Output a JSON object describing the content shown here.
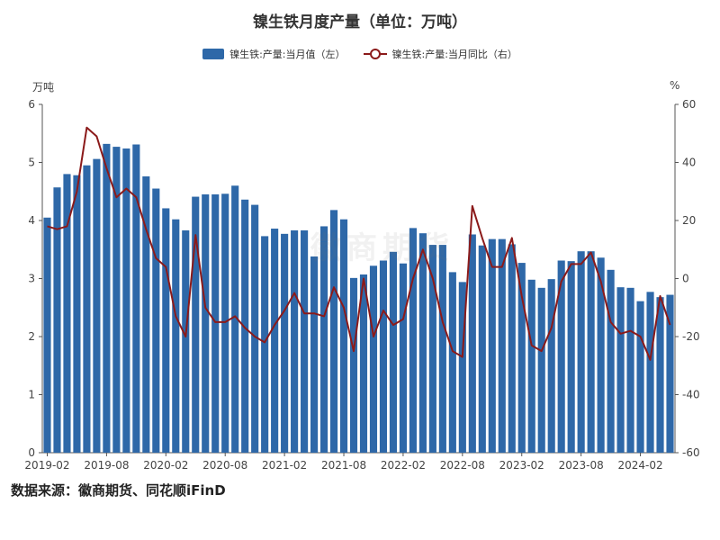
{
  "title": "镍生铁月度产量（单位：万吨）",
  "source": "数据来源：徽商期货、同花顺iFinD",
  "watermark": "徽商期货",
  "left_unit": "万吨",
  "right_unit": "%",
  "colors": {
    "bar": "#2e68a8",
    "line": "#8b1a1a",
    "axis": "#555555"
  },
  "chart_data": {
    "type": "bar",
    "categories": [
      "2019-02",
      "2019-03",
      "2019-04",
      "2019-05",
      "2019-06",
      "2019-07",
      "2019-08",
      "2019-09",
      "2019-10",
      "2019-11",
      "2019-12",
      "2020-01",
      "2020-02",
      "2020-03",
      "2020-04",
      "2020-05",
      "2020-06",
      "2020-07",
      "2020-08",
      "2020-09",
      "2020-10",
      "2020-11",
      "2020-12",
      "2021-01",
      "2021-02",
      "2021-03",
      "2021-04",
      "2021-05",
      "2021-06",
      "2021-07",
      "2021-08",
      "2021-09",
      "2021-10",
      "2021-11",
      "2021-12",
      "2022-01",
      "2022-02",
      "2022-03",
      "2022-04",
      "2022-05",
      "2022-06",
      "2022-07",
      "2022-08",
      "2022-09",
      "2022-10",
      "2022-11",
      "2022-12",
      "2023-01",
      "2023-02",
      "2023-03",
      "2023-04",
      "2023-05",
      "2023-06",
      "2023-07",
      "2023-08",
      "2023-09",
      "2023-10",
      "2023-11",
      "2023-12",
      "2024-01",
      "2024-02",
      "2024-03",
      "2024-04",
      "2024-05"
    ],
    "x_tick_labels": [
      "2019-02",
      "2019-08",
      "2020-02",
      "2020-08",
      "2021-02",
      "2021-08",
      "2022-02",
      "2022-08",
      "2023-02",
      "2023-08",
      "2024-02"
    ],
    "series": [
      {
        "name": "镍生铁:产量:当月值（左）",
        "axis": "left",
        "type": "bar",
        "values": [
          4.05,
          4.57,
          4.8,
          4.78,
          4.95,
          5.06,
          5.32,
          5.27,
          5.24,
          5.31,
          4.76,
          4.55,
          4.21,
          4.02,
          3.83,
          4.41,
          4.45,
          4.45,
          4.46,
          4.6,
          4.36,
          4.27,
          3.73,
          3.86,
          3.77,
          3.83,
          3.83,
          3.38,
          3.9,
          4.18,
          4.02,
          3.01,
          3.07,
          3.22,
          3.31,
          3.46,
          3.26,
          3.87,
          3.78,
          3.58,
          3.58,
          3.11,
          2.94,
          3.76,
          3.57,
          3.68,
          3.68,
          3.59,
          3.27,
          2.98,
          2.84,
          2.99,
          3.31,
          3.3,
          3.47,
          3.47,
          3.36,
          3.15,
          2.85,
          2.84,
          2.61,
          2.77,
          2.68,
          2.72
        ]
      },
      {
        "name": "镍生铁:产量:当月同比（右）",
        "axis": "right",
        "type": "line",
        "values": [
          18,
          17,
          18,
          30,
          52,
          49,
          38,
          28,
          31,
          28,
          17,
          7,
          4,
          -13,
          -20,
          15,
          -10,
          -15,
          -15,
          -13,
          -17,
          -20,
          -22,
          -16,
          -11,
          -5,
          -12,
          -12,
          -13,
          -3,
          -10,
          -25,
          0,
          -20,
          -11,
          -16,
          -14,
          0,
          10,
          0,
          -15,
          -25,
          -27,
          25,
          14,
          4,
          4,
          14,
          -6,
          -23,
          -25,
          -17,
          -1,
          5,
          5,
          9,
          -1,
          -15,
          -19,
          -18,
          -20,
          -28,
          -6,
          -16
        ]
      }
    ],
    "y_left": {
      "min": 0,
      "max": 6,
      "ticks": [
        0,
        1,
        2,
        3,
        4,
        5,
        6
      ]
    },
    "y_right": {
      "min": -60,
      "max": 60,
      "ticks": [
        -60,
        -40,
        -20,
        0,
        20,
        40,
        60
      ]
    },
    "grid": false,
    "legend_position": "top-center"
  }
}
